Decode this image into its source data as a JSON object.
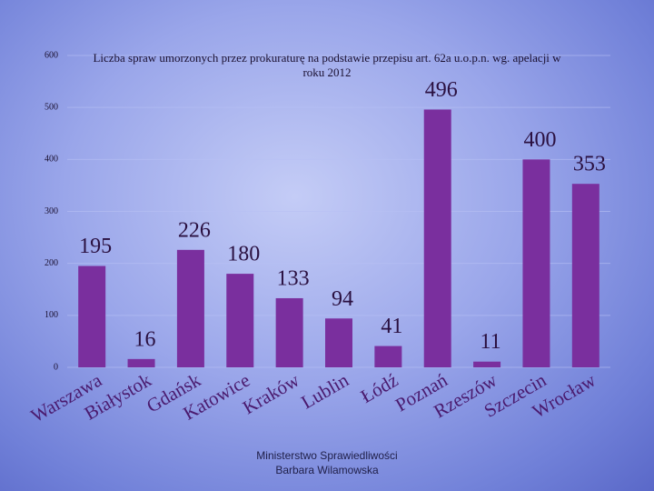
{
  "chart_data": {
    "type": "bar",
    "title": "Liczba spraw umorzonych przez prokuraturę na podstawie przepisu art. 62a u.o.p.n. wg. apelacji w roku 2012",
    "categories": [
      "Warszawa",
      "Białystok",
      "Gdańsk",
      "Katowice",
      "Kraków",
      "Lublin",
      "Łódź",
      "Poznań",
      "Rzeszów",
      "Szczecin",
      "Wrocław"
    ],
    "values": [
      195,
      16,
      226,
      180,
      133,
      94,
      41,
      496,
      11,
      400,
      353
    ],
    "color": "#7a2f9e",
    "ylim": [
      0,
      600
    ],
    "yticks": [
      0,
      100,
      200,
      300,
      400,
      500,
      600
    ],
    "grid": true
  },
  "footer": [
    "Ministerstwo Sprawiedliwości",
    "Barbara Wilamowska"
  ]
}
